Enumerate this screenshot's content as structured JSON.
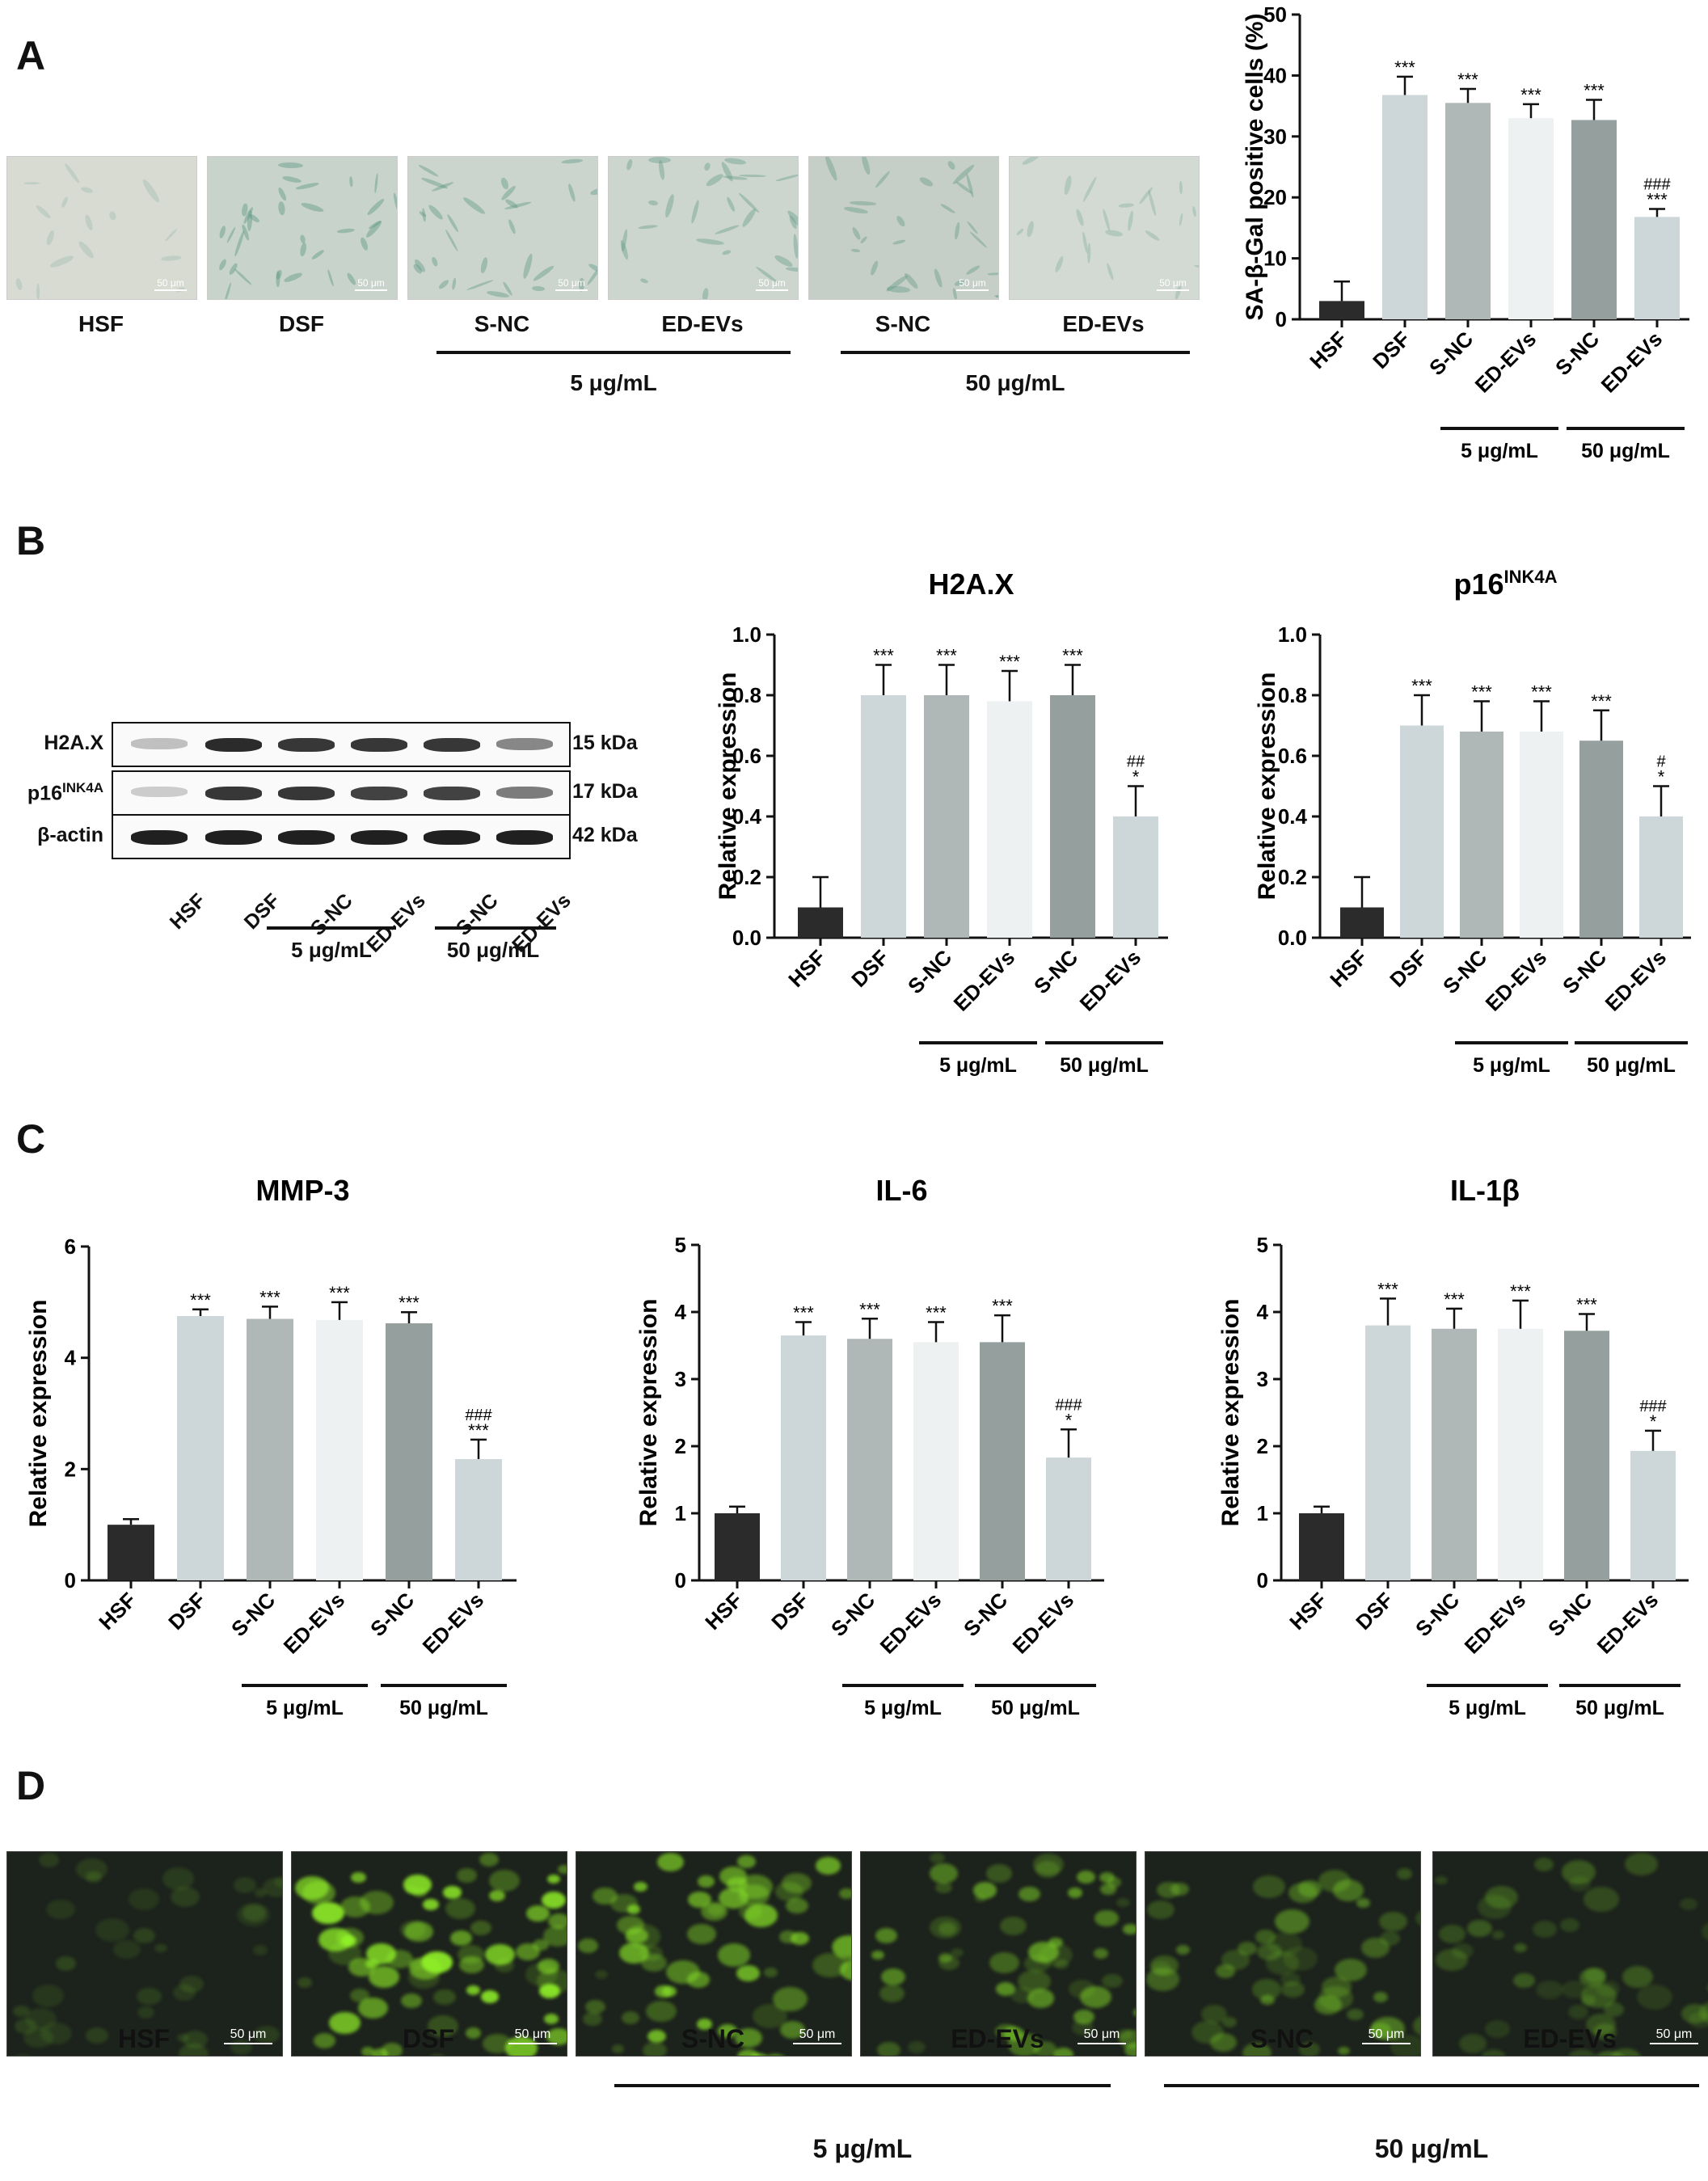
{
  "panels": {
    "A": "A",
    "B": "B",
    "C": "C",
    "D": "D"
  },
  "panel_a": {
    "images": [
      {
        "label": "HSF",
        "scale": "50 μm",
        "tone": "#d7dbd2",
        "stain": 0.05
      },
      {
        "label": "DSF",
        "scale": "50 μm",
        "tone": "#c8d3cb",
        "stain": 0.5
      },
      {
        "label": "S-NC",
        "scale": "50 μm",
        "tone": "#cbd5cd",
        "stain": 0.45
      },
      {
        "label": "ED-EVs",
        "scale": "50 μm",
        "tone": "#ccd6cf",
        "stain": 0.4
      },
      {
        "label": "S-NC",
        "scale": "50 μm",
        "tone": "#c5cec7",
        "stain": 0.4
      },
      {
        "label": "ED-EVs",
        "scale": "50 μm",
        "tone": "#d3d9d3",
        "stain": 0.2
      }
    ],
    "group1": "5 μg/mL",
    "group2": "50 μg/mL"
  },
  "panel_b_blot": {
    "rows": [
      {
        "name": "H2A.X",
        "sup": "",
        "kda": "15 kDa",
        "intensity": [
          0.25,
          0.9,
          0.85,
          0.85,
          0.85,
          0.5
        ]
      },
      {
        "name": "p16",
        "sup": "INK4A",
        "kda": "17 kDa",
        "intensity": [
          0.2,
          0.85,
          0.85,
          0.8,
          0.8,
          0.55
        ]
      },
      {
        "name": "β-actin",
        "sup": "",
        "kda": "42 kDa",
        "intensity": [
          0.95,
          0.95,
          0.95,
          0.95,
          0.95,
          0.95
        ]
      }
    ],
    "lanes": [
      "HSF",
      "DSF",
      "S-NC",
      "ED-EVs",
      "S-NC",
      "ED-EVs"
    ],
    "group1": "5 μg/mL",
    "group2": "50 μg/mL"
  },
  "panel_d": {
    "images": [
      {
        "label": "HSF",
        "scale": "50 μm",
        "glow": 0.15
      },
      {
        "label": "DSF",
        "scale": "50 μm",
        "glow": 0.95
      },
      {
        "label": "S-NC",
        "scale": "50 μm",
        "glow": 0.75
      },
      {
        "label": "ED-EVs",
        "scale": "50 μm",
        "glow": 0.6
      },
      {
        "label": "S-NC",
        "scale": "50 μm",
        "glow": 0.45
      },
      {
        "label": "ED-EVs",
        "scale": "50 μm",
        "glow": 0.3
      }
    ],
    "group1": "5 μg/mL",
    "group2": "50 μg/mL"
  },
  "chart_data": [
    {
      "id": "sa-beta-gal",
      "type": "bar",
      "title": "",
      "ylabel": "SA-β-Gal positive cells (%)",
      "ylim": [
        0,
        50
      ],
      "yticks": [
        0,
        10,
        20,
        30,
        40,
        50
      ],
      "categories": [
        "HSF",
        "DSF",
        "S-NC",
        "ED-EVs",
        "S-NC",
        "ED-EVs"
      ],
      "values": [
        3.0,
        36.8,
        35.5,
        33.0,
        32.7,
        16.8
      ],
      "errors": [
        3.2,
        3.0,
        2.3,
        2.3,
        3.3,
        1.3
      ],
      "stars": [
        "",
        "***",
        "***",
        "***",
        "***",
        "***"
      ],
      "hashes": [
        "",
        "",
        "",
        "",
        "",
        "###"
      ],
      "colors": [
        "#2b2b2b",
        "#cdd6d8",
        "#b0b8b7",
        "#eef1f1",
        "#959f9e",
        "#cdd6d8"
      ],
      "groups": [
        {
          "label": "5 μg/mL",
          "from": 2,
          "to": 3
        },
        {
          "label": "50 μg/mL",
          "from": 4,
          "to": 5
        }
      ]
    },
    {
      "id": "h2ax",
      "type": "bar",
      "title": "H2A.X",
      "title_sup": "",
      "ylabel": "Relative expression",
      "ylim": [
        0,
        1.0
      ],
      "yticks": [
        0.0,
        0.2,
        0.4,
        0.6,
        0.8,
        1.0
      ],
      "categories": [
        "HSF",
        "DSF",
        "S-NC",
        "ED-EVs",
        "S-NC",
        "ED-EVs"
      ],
      "values": [
        0.1,
        0.8,
        0.8,
        0.78,
        0.8,
        0.4
      ],
      "errors": [
        0.1,
        0.1,
        0.1,
        0.1,
        0.1,
        0.1
      ],
      "stars": [
        "",
        "***",
        "***",
        "***",
        "***",
        "*"
      ],
      "hashes": [
        "",
        "",
        "",
        "",
        "",
        "##"
      ],
      "colors": [
        "#2b2b2b",
        "#cdd6d8",
        "#b0b8b7",
        "#eef1f1",
        "#959f9e",
        "#cdd6d8"
      ],
      "groups": [
        {
          "label": "5 μg/mL",
          "from": 2,
          "to": 3
        },
        {
          "label": "50 μg/mL",
          "from": 4,
          "to": 5
        }
      ]
    },
    {
      "id": "p16",
      "type": "bar",
      "title": "p16",
      "title_sup": "INK4A",
      "ylabel": "Relative expression",
      "ylim": [
        0,
        1.0
      ],
      "yticks": [
        0.0,
        0.2,
        0.4,
        0.6,
        0.8,
        1.0
      ],
      "categories": [
        "HSF",
        "DSF",
        "S-NC",
        "ED-EVs",
        "S-NC",
        "ED-EVs"
      ],
      "values": [
        0.1,
        0.7,
        0.68,
        0.68,
        0.65,
        0.4
      ],
      "errors": [
        0.1,
        0.1,
        0.1,
        0.1,
        0.1,
        0.1
      ],
      "stars": [
        "",
        "***",
        "***",
        "***",
        "***",
        "*"
      ],
      "hashes": [
        "",
        "",
        "",
        "",
        "",
        "#"
      ],
      "colors": [
        "#2b2b2b",
        "#cdd6d8",
        "#b0b8b7",
        "#eef1f1",
        "#959f9e",
        "#cdd6d8"
      ],
      "groups": [
        {
          "label": "5 μg/mL",
          "from": 2,
          "to": 3
        },
        {
          "label": "50 μg/mL",
          "from": 4,
          "to": 5
        }
      ]
    },
    {
      "id": "mmp3",
      "type": "bar",
      "title": "MMP-3",
      "title_sup": "",
      "ylabel": "Relative expression",
      "ylim": [
        0,
        6
      ],
      "yticks": [
        0,
        2,
        4,
        6
      ],
      "categories": [
        "HSF",
        "DSF",
        "S-NC",
        "ED-EVs",
        "S-NC",
        "ED-EVs"
      ],
      "values": [
        1.0,
        4.75,
        4.7,
        4.68,
        4.62,
        2.18
      ],
      "errors": [
        0.1,
        0.12,
        0.22,
        0.32,
        0.2,
        0.35
      ],
      "stars": [
        "",
        "***",
        "***",
        "***",
        "***",
        "***"
      ],
      "hashes": [
        "",
        "",
        "",
        "",
        "",
        "###"
      ],
      "colors": [
        "#2b2b2b",
        "#cdd6d8",
        "#b0b8b7",
        "#eef1f1",
        "#959f9e",
        "#cdd6d8"
      ],
      "groups": [
        {
          "label": "5 μg/mL",
          "from": 2,
          "to": 3
        },
        {
          "label": "50 μg/mL",
          "from": 4,
          "to": 5
        }
      ]
    },
    {
      "id": "il6",
      "type": "bar",
      "title": "IL-6",
      "title_sup": "",
      "ylabel": "Relative expression",
      "ylim": [
        0,
        5
      ],
      "yticks": [
        0,
        1,
        2,
        3,
        4,
        5
      ],
      "categories": [
        "HSF",
        "DSF",
        "S-NC",
        "ED-EVs",
        "S-NC",
        "ED-EVs"
      ],
      "values": [
        1.0,
        3.65,
        3.6,
        3.55,
        3.55,
        1.83
      ],
      "errors": [
        0.1,
        0.2,
        0.3,
        0.3,
        0.4,
        0.42
      ],
      "stars": [
        "",
        "***",
        "***",
        "***",
        "***",
        "*"
      ],
      "hashes": [
        "",
        "",
        "",
        "",
        "",
        "###"
      ],
      "colors": [
        "#2b2b2b",
        "#cdd6d8",
        "#b0b8b7",
        "#eef1f1",
        "#959f9e",
        "#cdd6d8"
      ],
      "groups": [
        {
          "label": "5 μg/mL",
          "from": 2,
          "to": 3
        },
        {
          "label": "50 μg/mL",
          "from": 4,
          "to": 5
        }
      ]
    },
    {
      "id": "il1b",
      "type": "bar",
      "title": "IL-1β",
      "title_sup": "",
      "ylabel": "Relative expression",
      "ylim": [
        0,
        5
      ],
      "yticks": [
        0,
        1,
        2,
        3,
        4,
        5
      ],
      "categories": [
        "HSF",
        "DSF",
        "S-NC",
        "ED-EVs",
        "S-NC",
        "ED-EVs"
      ],
      "values": [
        1.0,
        3.8,
        3.75,
        3.75,
        3.72,
        1.93
      ],
      "errors": [
        0.1,
        0.4,
        0.3,
        0.42,
        0.25,
        0.3
      ],
      "stars": [
        "",
        "***",
        "***",
        "***",
        "***",
        "*"
      ],
      "hashes": [
        "",
        "",
        "",
        "",
        "",
        "###"
      ],
      "colors": [
        "#2b2b2b",
        "#cdd6d8",
        "#b0b8b7",
        "#eef1f1",
        "#959f9e",
        "#cdd6d8"
      ],
      "groups": [
        {
          "label": "5 μg/mL",
          "from": 2,
          "to": 3
        },
        {
          "label": "50 μg/mL",
          "from": 4,
          "to": 5
        }
      ]
    }
  ]
}
